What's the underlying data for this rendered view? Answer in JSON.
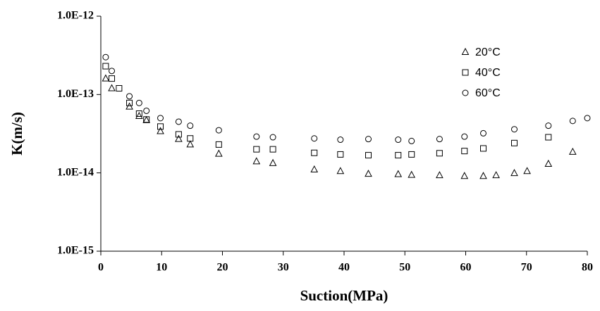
{
  "chart_data": {
    "type": "scatter",
    "log_y": true,
    "grid": false,
    "legend_position": "upper-right",
    "xlabel": "Suction(MPa)",
    "ylabel": "K(m/s)",
    "xlim": [
      0,
      80
    ],
    "xticks": [
      0,
      10,
      20,
      30,
      40,
      50,
      60,
      70,
      80
    ],
    "ylim": [
      1e-15,
      1e-12
    ],
    "yticks": [
      {
        "value": 1e-15,
        "label": "1.0E-15"
      },
      {
        "value": 1e-14,
        "label": "1.0E-14"
      },
      {
        "value": 1e-13,
        "label": "1.0E-13"
      },
      {
        "value": 1e-12,
        "label": "1.0E-12"
      }
    ],
    "series": [
      {
        "name": "20°C",
        "color": "#000000",
        "marker": "triangle",
        "x": [
          0.8,
          1.8,
          4.7,
          6.3,
          7.5,
          9.8,
          12.8,
          14.7,
          19.4,
          25.6,
          28.3,
          35.1,
          39.4,
          44.0,
          48.9,
          51.1,
          55.7,
          59.8,
          62.9,
          65.0,
          68.0,
          70.1,
          73.6,
          77.6
        ],
        "values": [
          1.6e-13,
          1.2e-13,
          7e-14,
          5.3e-14,
          4.7e-14,
          3.4e-14,
          2.7e-14,
          2.3e-14,
          1.75e-14,
          1.4e-14,
          1.33e-14,
          1.1e-14,
          1.05e-14,
          9.7e-15,
          9.6e-15,
          9.4e-15,
          9.3e-15,
          9.1e-15,
          9.1e-15,
          9.3e-15,
          9.9e-15,
          1.05e-14,
          1.3e-14,
          1.85e-14
        ]
      },
      {
        "name": "40°C",
        "color": "#000000",
        "marker": "square",
        "x": [
          0.8,
          1.8,
          3.0,
          4.7,
          6.3,
          7.5,
          9.8,
          12.8,
          14.7,
          19.4,
          25.6,
          28.3,
          35.1,
          39.4,
          44.0,
          48.9,
          51.1,
          55.7,
          59.8,
          62.9,
          68.0,
          73.6
        ],
        "values": [
          2.3e-13,
          1.6e-13,
          1.2e-13,
          7.8e-14,
          5.7e-14,
          4.8e-14,
          3.9e-14,
          3.1e-14,
          2.75e-14,
          2.3e-14,
          2e-14,
          2e-14,
          1.8e-14,
          1.72e-14,
          1.68e-14,
          1.68e-14,
          1.72e-14,
          1.78e-14,
          1.9e-14,
          2.05e-14,
          2.4e-14,
          2.85e-14
        ]
      },
      {
        "name": "60°C",
        "color": "#000000",
        "marker": "circle",
        "x": [
          0.8,
          1.8,
          4.7,
          6.3,
          7.5,
          9.8,
          12.8,
          14.7,
          19.4,
          25.6,
          28.3,
          35.1,
          39.4,
          44.0,
          48.9,
          51.1,
          55.7,
          59.8,
          62.9,
          68.0,
          73.6,
          77.6,
          80.0
        ],
        "values": [
          3e-13,
          2e-13,
          9.5e-14,
          7.8e-14,
          6.2e-14,
          5e-14,
          4.5e-14,
          4e-14,
          3.5e-14,
          2.9e-14,
          2.85e-14,
          2.75e-14,
          2.65e-14,
          2.7e-14,
          2.65e-14,
          2.55e-14,
          2.7e-14,
          2.9e-14,
          3.2e-14,
          3.6e-14,
          4e-14,
          4.6e-14,
          5e-14
        ]
      }
    ]
  }
}
